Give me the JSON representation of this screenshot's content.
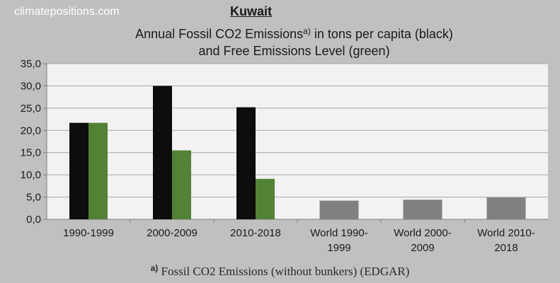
{
  "header": {
    "site": "climatepositions.com",
    "country": "Kuwait",
    "title_line1_main": "Annual Fossil CO2 Emissions",
    "title_line1_sup": "a)",
    "title_line1_rest": " in tons per capita (black)",
    "title_line2": "and Free Emissions Level (green)"
  },
  "footnote": {
    "mark": "a)",
    "text": " Fossil CO2 Emissions (without bunkers) (EDGAR)"
  },
  "colors": {
    "black_series": "#0d0d0d",
    "green_series": "#538135",
    "world_series": "#808080",
    "plot_background": "#f2f2f2",
    "gridline": "#a6a6a6",
    "page_background": "#c0c0c0"
  },
  "chart_data": {
    "type": "bar",
    "categories": [
      [
        "1990-1999"
      ],
      [
        "2000-2009"
      ],
      [
        "2010-2018"
      ],
      [
        "World 1990-",
        "1999"
      ],
      [
        "World 2000-",
        "2009"
      ],
      [
        "World 2010-",
        "2018"
      ]
    ],
    "series": [
      {
        "key": "black",
        "values": [
          21.7,
          30.0,
          25.2,
          null,
          null,
          null
        ]
      },
      {
        "key": "green",
        "values": [
          21.7,
          15.5,
          9.1,
          null,
          null,
          null
        ]
      },
      {
        "key": "world",
        "values": [
          null,
          null,
          null,
          4.2,
          4.4,
          4.9
        ]
      }
    ],
    "ylim": [
      0,
      35
    ],
    "yticks": [
      "0,0",
      "5,0",
      "10,0",
      "15,0",
      "20,0",
      "25,0",
      "30,0",
      "35,0"
    ],
    "grid": true
  }
}
